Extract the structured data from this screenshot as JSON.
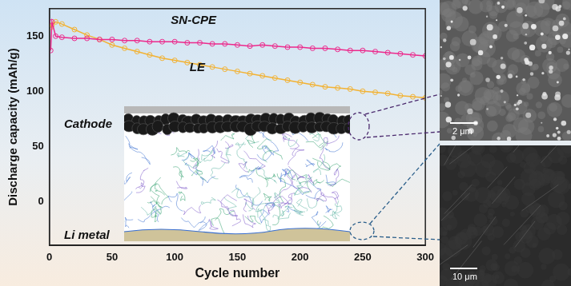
{
  "chart_data": {
    "type": "line",
    "x_label": "Cycle number",
    "y_label": "Discharge capacity (mAh/g)",
    "xlim": [
      0,
      300
    ],
    "xticks": [
      0,
      50,
      100,
      150,
      200,
      250,
      300
    ],
    "ylim": [
      -40,
      175
    ],
    "yticks": [
      0,
      50,
      100,
      150
    ],
    "grid": false,
    "marker": "circle",
    "series": [
      {
        "name": "SN-CPE",
        "color": "#ec2a8c",
        "x": [
          1,
          2,
          5,
          10,
          20,
          30,
          40,
          50,
          60,
          70,
          80,
          90,
          100,
          110,
          120,
          130,
          140,
          150,
          160,
          170,
          180,
          190,
          200,
          210,
          220,
          230,
          240,
          250,
          260,
          270,
          280,
          290,
          300
        ],
        "values": [
          137,
          163,
          150,
          149,
          148,
          148,
          147,
          147,
          146,
          146,
          145,
          145,
          145,
          144,
          144,
          143,
          143,
          142,
          141,
          142,
          141,
          140,
          140,
          139,
          139,
          138,
          137,
          137,
          136,
          135,
          134,
          133,
          132
        ]
      },
      {
        "name": "LE",
        "color": "#f2b233",
        "x": [
          1,
          2,
          5,
          10,
          20,
          30,
          40,
          50,
          60,
          70,
          80,
          90,
          100,
          110,
          120,
          130,
          140,
          150,
          160,
          170,
          180,
          190,
          200,
          210,
          220,
          230,
          240,
          250,
          260,
          270,
          280,
          290,
          300
        ],
        "values": [
          158,
          160,
          163,
          161,
          156,
          151,
          147,
          142,
          139,
          136,
          133,
          130,
          128,
          126,
          124,
          122,
          120,
          118,
          116,
          114,
          112,
          110,
          108,
          106,
          104,
          103,
          102,
          100,
          99,
          98,
          96,
          95,
          94
        ]
      }
    ]
  },
  "schematic": {
    "labels": [
      "Cathode",
      "Li metal"
    ]
  },
  "sem_images": [
    {
      "scale_bar": "2 μm"
    },
    {
      "scale_bar": "10 μm"
    }
  ]
}
